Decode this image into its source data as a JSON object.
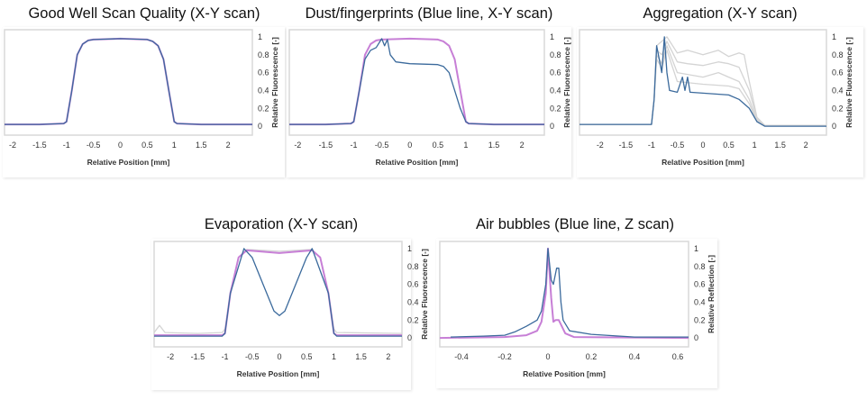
{
  "colors": {
    "blue": "#3b6a9c",
    "purple": "#c77fd6",
    "gray": "#d4d4d4",
    "frame": "#d9d9d9"
  },
  "chart_data": [
    {
      "type": "line",
      "title": "Good Well Scan Quality (X-Y scan)",
      "xlabel": "Relative Position [mm]",
      "ylabel": "Relative Fluorescence [-]",
      "xlim": [
        -2.15,
        2.45
      ],
      "ylim": [
        -0.1,
        1.08
      ],
      "xticks": [
        "-2",
        "-1.5",
        "-1",
        "-0.5",
        "0",
        "0.5",
        "1",
        "1.5",
        "2"
      ],
      "yticks": [
        "0",
        "0.2",
        "0.4",
        "0.6",
        "0.8",
        "1"
      ],
      "y_axis_side": "right",
      "grid": false,
      "series": [
        {
          "color": "purple",
          "x": [
            -2.15,
            -1.5,
            -1.05,
            -1,
            -0.9,
            -0.8,
            -0.7,
            -0.6,
            -0.5,
            0,
            0.5,
            0.6,
            0.7,
            0.8,
            0.9,
            1,
            1.05,
            1.5,
            2.45
          ],
          "y": [
            0.02,
            0.02,
            0.03,
            0.05,
            0.4,
            0.8,
            0.92,
            0.96,
            0.97,
            0.98,
            0.97,
            0.95,
            0.9,
            0.75,
            0.4,
            0.05,
            0.03,
            0.02,
            0.02
          ]
        },
        {
          "color": "blue",
          "x": [
            -2.15,
            -1.5,
            -1.05,
            -1,
            -0.9,
            -0.8,
            -0.7,
            -0.6,
            -0.5,
            0,
            0.5,
            0.6,
            0.7,
            0.8,
            0.9,
            1,
            1.05,
            1.5,
            2.45
          ],
          "y": [
            0.02,
            0.02,
            0.03,
            0.05,
            0.4,
            0.8,
            0.92,
            0.96,
            0.97,
            0.98,
            0.97,
            0.95,
            0.9,
            0.75,
            0.4,
            0.05,
            0.03,
            0.02,
            0.02
          ]
        }
      ]
    },
    {
      "type": "line",
      "title": "Dust/fingerprints (Blue line, X-Y scan)",
      "xlabel": "Relative Position [mm]",
      "ylabel": "Relative Fluorescence [-]",
      "xlim": [
        -2.15,
        2.4
      ],
      "ylim": [
        -0.1,
        1.08
      ],
      "xticks": [
        "-2",
        "-1.5",
        "-1",
        "-0.5",
        "0",
        "0.5",
        "1",
        "1.5",
        "2"
      ],
      "yticks": [
        "0",
        "0.2",
        "0.4",
        "0.6",
        "0.8",
        "1"
      ],
      "y_axis_side": "right",
      "grid": false,
      "series": [
        {
          "color": "purple",
          "x": [
            -2.15,
            -1.5,
            -1.05,
            -1,
            -0.9,
            -0.8,
            -0.7,
            -0.6,
            -0.5,
            0,
            0.5,
            0.6,
            0.7,
            0.8,
            0.9,
            1,
            1.05,
            1.5,
            2.4
          ],
          "y": [
            0.02,
            0.02,
            0.03,
            0.05,
            0.4,
            0.8,
            0.92,
            0.96,
            0.97,
            0.98,
            0.97,
            0.95,
            0.9,
            0.75,
            0.4,
            0.05,
            0.03,
            0.02,
            0.02
          ]
        },
        {
          "color": "blue",
          "x": [
            -2.15,
            -1.5,
            -1.05,
            -1,
            -0.9,
            -0.8,
            -0.7,
            -0.6,
            -0.5,
            -0.45,
            -0.4,
            -0.35,
            -0.25,
            0,
            0.5,
            0.6,
            0.7,
            0.8,
            0.9,
            1,
            1.05,
            1.5,
            2.4
          ],
          "y": [
            0.02,
            0.02,
            0.03,
            0.05,
            0.4,
            0.75,
            0.85,
            0.88,
            0.98,
            0.9,
            0.97,
            0.8,
            0.72,
            0.7,
            0.69,
            0.67,
            0.6,
            0.4,
            0.2,
            0.05,
            0.03,
            0.02,
            0.02
          ]
        }
      ]
    },
    {
      "type": "line",
      "title": "Aggregation (X-Y scan)",
      "xlabel": "Relative Position [mm]",
      "ylabel": "Relative Fluorescence [-]",
      "xlim": [
        -2.4,
        2.4
      ],
      "ylim": [
        -0.1,
        1.08
      ],
      "xticks": [
        "-2",
        "-1.5",
        "-1",
        "-0.5",
        "0",
        "0.5",
        "1",
        "1.5",
        "2"
      ],
      "yticks": [
        "0",
        "0.2",
        "0.4",
        "0.6",
        "0.8",
        "1"
      ],
      "y_axis_side": "right",
      "grid": false,
      "series": [
        {
          "color": "gray",
          "x": [
            -2.4,
            -1,
            -0.95,
            -0.9,
            -0.8,
            -0.7,
            -0.5,
            -0.3,
            0,
            0.3,
            0.5,
            0.7,
            0.8,
            0.9,
            1.05,
            1.2,
            2.4
          ],
          "y": [
            0.02,
            0.02,
            0.3,
            0.9,
            0.95,
            1.0,
            0.82,
            0.85,
            0.8,
            0.85,
            0.78,
            0.82,
            0.8,
            0.5,
            0.1,
            0.01,
            0.01
          ]
        },
        {
          "color": "gray",
          "x": [
            -2.4,
            -1,
            -0.95,
            -0.9,
            -0.8,
            -0.7,
            -0.5,
            -0.3,
            0,
            0.3,
            0.5,
            0.7,
            0.9,
            1.05,
            1.2,
            2.4
          ],
          "y": [
            0.02,
            0.02,
            0.3,
            0.85,
            0.8,
            0.95,
            0.72,
            0.7,
            0.68,
            0.72,
            0.7,
            0.66,
            0.4,
            0.08,
            0.01,
            0.01
          ]
        },
        {
          "color": "gray",
          "x": [
            -2.4,
            -1,
            -0.95,
            -0.9,
            -0.8,
            -0.7,
            -0.5,
            -0.3,
            0,
            0.3,
            0.5,
            0.7,
            0.9,
            1.05,
            1.2,
            2.4
          ],
          "y": [
            0.02,
            0.02,
            0.3,
            0.8,
            0.7,
            0.9,
            0.6,
            0.58,
            0.55,
            0.6,
            0.55,
            0.5,
            0.3,
            0.06,
            0.01,
            0.01
          ]
        },
        {
          "color": "gray",
          "x": [
            -2.4,
            -1,
            -0.95,
            -0.9,
            -0.8,
            -0.7,
            -0.5,
            0,
            0.5,
            0.7,
            0.9,
            1.05,
            1.2,
            2.4
          ],
          "y": [
            0.02,
            0.02,
            0.3,
            0.75,
            0.65,
            0.85,
            0.5,
            0.47,
            0.45,
            0.42,
            0.25,
            0.05,
            0.01,
            0.01
          ]
        },
        {
          "color": "blue",
          "x": [
            -2.4,
            -1,
            -0.95,
            -0.9,
            -0.85,
            -0.8,
            -0.75,
            -0.7,
            -0.65,
            -0.5,
            -0.4,
            -0.35,
            -0.3,
            -0.25,
            0,
            0.5,
            0.7,
            0.9,
            1.05,
            1.2,
            2.4
          ],
          "y": [
            0.02,
            0.02,
            0.3,
            0.9,
            0.75,
            0.6,
            1.0,
            0.6,
            0.4,
            0.38,
            0.55,
            0.4,
            0.55,
            0.38,
            0.37,
            0.35,
            0.3,
            0.2,
            0.05,
            0.0,
            0.0
          ]
        }
      ]
    },
    {
      "type": "line",
      "title": "Evaporation (X-Y scan)",
      "xlabel": "Relative Position [mm]",
      "ylabel": "Relative Fluorescence [-]",
      "xlim": [
        -2.3,
        2.25
      ],
      "ylim": [
        -0.1,
        1.08
      ],
      "xticks": [
        "-2",
        "-1.5",
        "-1",
        "-0.5",
        "0",
        "0.5",
        "1",
        "1.5",
        "2"
      ],
      "yticks": [
        "0",
        "0.2",
        "0.4",
        "0.6",
        "0.8",
        "1"
      ],
      "y_axis_side": "right",
      "grid": false,
      "series": [
        {
          "color": "gray",
          "x": [
            -2.3,
            -2.2,
            -2.1,
            -1.5,
            -1.05,
            -1,
            -0.9,
            -0.75,
            -0.6,
            0,
            0.6,
            0.75,
            0.9,
            1,
            1.05,
            2.25
          ],
          "y": [
            0.06,
            0.14,
            0.06,
            0.05,
            0.06,
            0.1,
            0.5,
            0.9,
            0.99,
            0.97,
            0.99,
            0.9,
            0.5,
            0.1,
            0.06,
            0.05
          ]
        },
        {
          "color": "purple",
          "x": [
            -2.3,
            -1.05,
            -1,
            -0.9,
            -0.75,
            -0.6,
            0,
            0.6,
            0.75,
            0.9,
            1,
            1.05,
            2.25
          ],
          "y": [
            0.03,
            0.03,
            0.05,
            0.5,
            0.9,
            0.98,
            0.95,
            0.98,
            0.9,
            0.5,
            0.05,
            0.03,
            0.03
          ]
        },
        {
          "color": "blue",
          "x": [
            -2.3,
            -1.05,
            -1,
            -0.9,
            -0.65,
            -0.5,
            -0.3,
            -0.1,
            0,
            0.1,
            0.3,
            0.5,
            0.6,
            0.9,
            1,
            1.05,
            2.25
          ],
          "y": [
            0.02,
            0.02,
            0.05,
            0.5,
            1.0,
            0.9,
            0.6,
            0.3,
            0.25,
            0.3,
            0.6,
            0.9,
            1.0,
            0.5,
            0.05,
            0.02,
            0.02
          ]
        }
      ]
    },
    {
      "type": "line",
      "title": "Air bubbles (Blue line, Z scan)",
      "xlabel": "Relative Position [mm]",
      "ylabel": "Relative Reflection [-]",
      "xlim": [
        -0.5,
        0.65
      ],
      "ylim": [
        -0.1,
        1.08
      ],
      "xticks": [
        "-0.4",
        "-0.2",
        "0",
        "0.2",
        "0.4",
        "0.6"
      ],
      "yticks": [
        "0",
        "0.2",
        "0.4",
        "0.6",
        "0.8",
        "1"
      ],
      "y_axis_side": "right",
      "grid": false,
      "series": [
        {
          "color": "purple",
          "x": [
            -0.5,
            -0.2,
            -0.1,
            -0.05,
            -0.03,
            -0.01,
            0,
            0.015,
            0.025,
            0.035,
            0.05,
            0.06,
            0.08,
            0.12,
            0.65
          ],
          "y": [
            0,
            0.01,
            0.03,
            0.08,
            0.18,
            0.5,
            1.0,
            0.45,
            0.18,
            0.2,
            0.2,
            0.15,
            0.05,
            0.01,
            0
          ]
        },
        {
          "color": "blue",
          "x": [
            -0.45,
            -0.3,
            -0.2,
            -0.15,
            -0.1,
            -0.05,
            -0.03,
            -0.01,
            0,
            0.015,
            0.025,
            0.04,
            0.05,
            0.06,
            0.07,
            0.1,
            0.2,
            0.4,
            0.65
          ],
          "y": [
            0.01,
            0.02,
            0.03,
            0.07,
            0.13,
            0.2,
            0.3,
            0.6,
            1.0,
            0.65,
            0.6,
            0.78,
            0.78,
            0.4,
            0.2,
            0.08,
            0.04,
            0.01,
            0.01
          ]
        }
      ]
    }
  ]
}
